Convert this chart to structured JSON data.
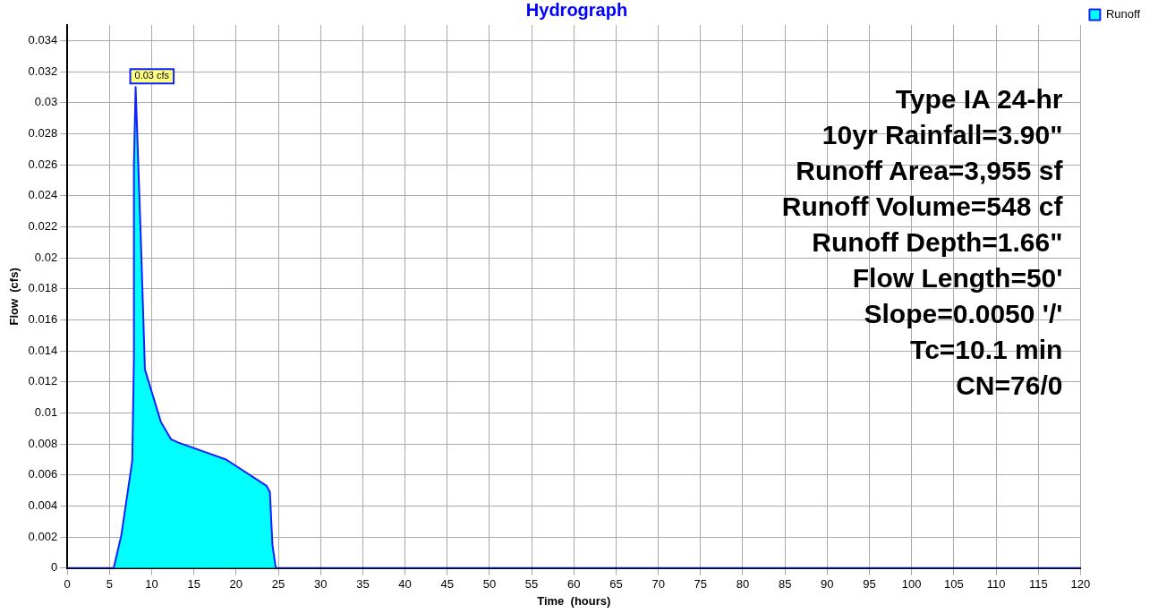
{
  "chart_data": {
    "type": "area",
    "title": "Hydrograph",
    "xlabel": "Time  (hours)",
    "ylabel": "Flow  (cfs)",
    "x": [
      0,
      5.5,
      6.4,
      7.7,
      7.9,
      7.9,
      8.1,
      8.7,
      9.2,
      11.1,
      12.3,
      13.1,
      18.8,
      23.6,
      24,
      24.3,
      24.7,
      120
    ],
    "series": [
      {
        "name": "Runoff",
        "color": "#00ffff",
        "values": [
          0,
          0,
          0.0021,
          0.0069,
          0.0136,
          0.026,
          0.031,
          0.0215,
          0.0128,
          0.0094,
          0.0083,
          0.0081,
          0.007,
          0.0053,
          0.0049,
          0.0015,
          0,
          0
        ]
      }
    ],
    "xlim": [
      0,
      120
    ],
    "xticks": [
      0,
      5,
      10,
      15,
      20,
      25,
      30,
      35,
      40,
      45,
      50,
      55,
      60,
      65,
      70,
      75,
      80,
      85,
      90,
      95,
      100,
      105,
      110,
      115,
      120
    ],
    "ylim": [
      0,
      0.035
    ],
    "yticks": [
      0,
      0.002,
      0.004,
      0.006,
      0.008,
      0.01,
      0.012,
      0.014,
      0.016,
      0.018,
      0.02,
      0.022,
      0.024,
      0.026,
      0.028,
      0.03,
      0.032,
      0.034
    ],
    "grid": true,
    "legend": "top right",
    "annotations": [
      {
        "text": "0.03 cfs",
        "x": 8.1,
        "y": 0.031
      },
      "Type IA 24-hr",
      "10yr Rainfall=3.90\"",
      "Runoff Area=3,955 sf",
      "Runoff Volume=548 cf",
      "Runoff Depth=1.66\"",
      "Flow Length=50'",
      "Slope=0.0050 '/'",
      "Tc=10.1 min",
      "CN=76/0"
    ]
  }
}
